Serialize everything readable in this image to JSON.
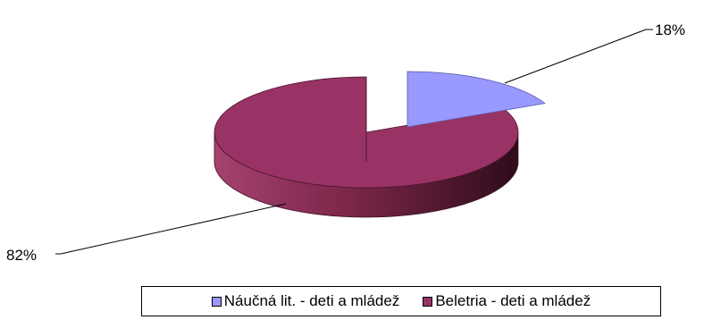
{
  "chart_data": {
    "type": "pie",
    "style": "3d-exploded",
    "categories": [
      "Náučná lit. - deti a mládež",
      "Beletria - deti a mládež"
    ],
    "values": [
      18,
      82
    ],
    "data_labels": [
      "18%",
      "82%"
    ],
    "colors": [
      "#9999ff",
      "#993366"
    ],
    "side_colors": [
      "#3b3d72",
      "#5a1c36"
    ],
    "legend_position": "bottom"
  }
}
